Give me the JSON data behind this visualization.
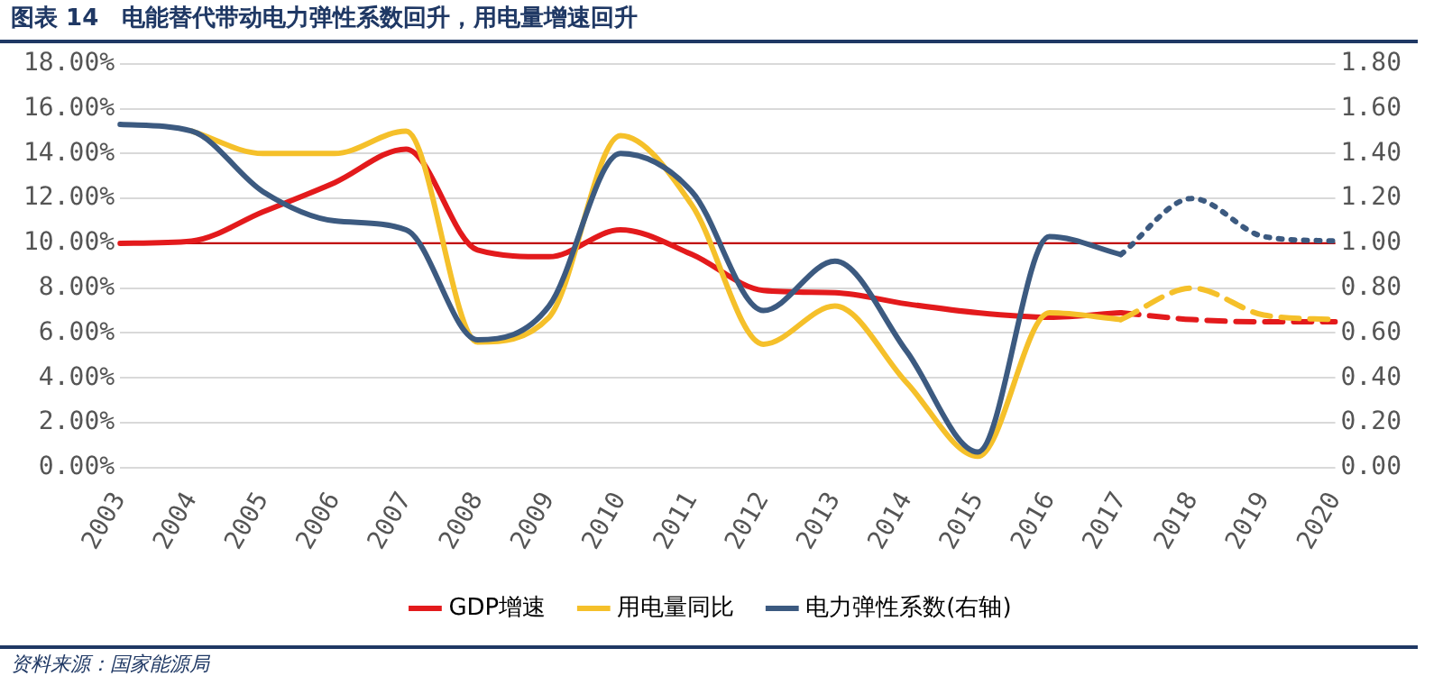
{
  "chart_data": {
    "type": "line",
    "title": "图表 14　电能替代带动电力弹性系数回升，用电量增速回升",
    "categories": [
      "2003",
      "2004",
      "2005",
      "2006",
      "2007",
      "2008",
      "2009",
      "2010",
      "2011",
      "2012",
      "2013",
      "2014",
      "2015",
      "2016",
      "2017",
      "2018",
      "2019",
      "2020"
    ],
    "series": [
      {
        "name": "GDP增速",
        "color": "#e31a1c",
        "line_style": "solid",
        "values": [
          10.0,
          10.1,
          11.4,
          12.7,
          14.2,
          9.7,
          9.4,
          10.6,
          9.5,
          7.9,
          7.8,
          7.3,
          6.9,
          6.7,
          6.9,
          null,
          null,
          null
        ]
      },
      {
        "name": "用电量同比",
        "color": "#f5c02a",
        "line_style": "solid",
        "values": [
          null,
          15.0,
          14.0,
          14.0,
          15.0,
          5.6,
          6.7,
          14.8,
          11.7,
          5.5,
          7.2,
          3.8,
          0.5,
          6.9,
          6.6,
          null,
          null,
          null
        ]
      },
      {
        "name": "电力弹性系数(右轴)",
        "color": "#3c5a80",
        "axis": "y2",
        "line_style": "solid",
        "values": [
          1.53,
          1.5,
          1.23,
          1.1,
          1.06,
          0.57,
          0.72,
          1.4,
          1.23,
          0.7,
          0.92,
          0.52,
          0.07,
          1.03,
          0.95,
          null,
          null,
          null
        ]
      },
      {
        "color": "#e31a1c",
        "line_style": "dashed",
        "values": [
          null,
          null,
          null,
          null,
          null,
          null,
          null,
          null,
          null,
          null,
          null,
          null,
          null,
          null,
          6.9,
          6.6,
          6.5,
          6.5
        ]
      },
      {
        "color": "#f5c02a",
        "line_style": "dashed",
        "values": [
          null,
          null,
          null,
          null,
          null,
          null,
          null,
          null,
          null,
          null,
          null,
          null,
          null,
          null,
          6.6,
          8.0,
          6.8,
          6.6
        ]
      },
      {
        "color": "#3c5a80",
        "axis": "y2",
        "line_style": "dotted",
        "values": [
          null,
          null,
          null,
          null,
          null,
          null,
          null,
          null,
          null,
          null,
          null,
          null,
          null,
          null,
          0.95,
          1.2,
          1.03,
          1.01
        ]
      }
    ],
    "ylim": [
      0,
      18
    ],
    "yticks": [
      {
        "value": 0,
        "label": "0.00%"
      },
      {
        "value": 2,
        "label": "2.00%"
      },
      {
        "value": 4,
        "label": "4.00%"
      },
      {
        "value": 6,
        "label": "6.00%"
      },
      {
        "value": 8,
        "label": "8.00%"
      },
      {
        "value": 10,
        "label": "10.00%"
      },
      {
        "value": 12,
        "label": "12.00%"
      },
      {
        "value": 14,
        "label": "14.00%"
      },
      {
        "value": 16,
        "label": "16.00%"
      },
      {
        "value": 18,
        "label": "18.00%"
      }
    ],
    "y2lim": [
      0,
      1.8
    ],
    "y2ticks": [
      {
        "value": 0,
        "label": "0.00"
      },
      {
        "value": 0.2,
        "label": "0.20"
      },
      {
        "value": 0.4,
        "label": "0.40"
      },
      {
        "value": 0.6,
        "label": "0.60"
      },
      {
        "value": 0.8,
        "label": "0.80"
      },
      {
        "value": 1,
        "label": "1.00"
      },
      {
        "value": 1.2,
        "label": "1.20"
      },
      {
        "value": 1.4,
        "label": "1.40"
      },
      {
        "value": 1.6,
        "label": "1.60"
      },
      {
        "value": 1.8,
        "label": "1.80"
      }
    ],
    "ref_lines": [
      {
        "axis": "y",
        "value": 10,
        "color": "#c00000",
        "line_style": "solid"
      }
    ],
    "grid": "y",
    "legend": "bottom",
    "marker": "none",
    "annotations": [
      "资料来源：国家能源局"
    ]
  }
}
